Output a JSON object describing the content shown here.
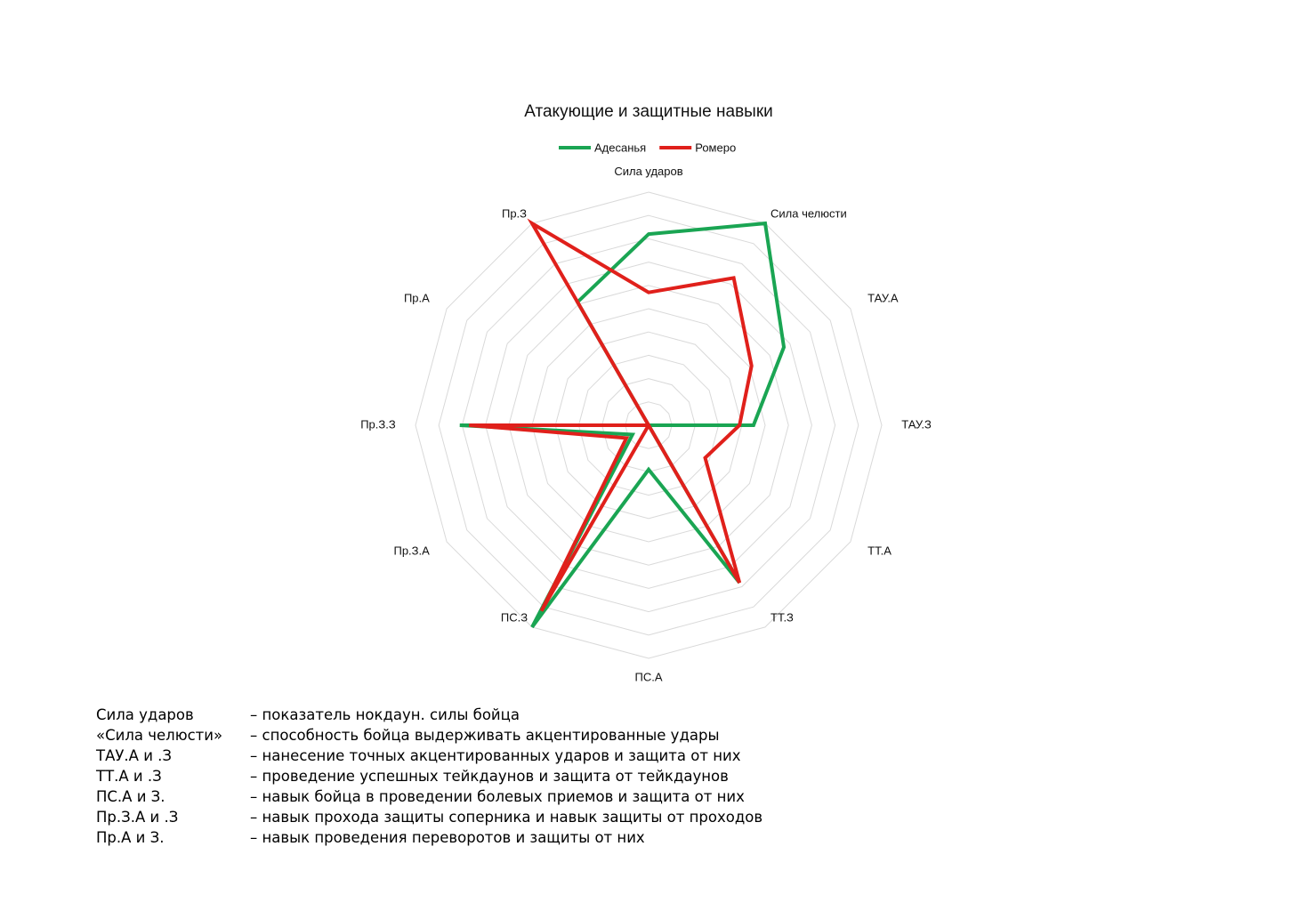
{
  "chart_data": {
    "type": "radar",
    "title": "Атакующие и защитные навыки",
    "categories": [
      "Сила ударов",
      "Сила челюсти",
      "ТАУ.А",
      "ТАУ.З",
      "ТТ.А",
      "ТТ.З",
      "ПС.А",
      "ПС.З",
      "Пр.З.А",
      "Пр.З.З",
      "Пр.А",
      "Пр.З"
    ],
    "series": [
      {
        "name": "Адесанья",
        "color": "#1aa553",
        "values": [
          8.2,
          10,
          6.7,
          4.5,
          0,
          7.8,
          1.9,
          10,
          0.8,
          8.1,
          0,
          6.1
        ]
      },
      {
        "name": "Ромеро",
        "color": "#e0201b",
        "values": [
          5.7,
          7.3,
          5.1,
          3.9,
          2.8,
          7.8,
          0,
          9.2,
          1.1,
          7.7,
          0,
          10
        ]
      }
    ],
    "rlim": [
      0,
      10
    ],
    "rticks": [
      1,
      2,
      3,
      4,
      5,
      6,
      7,
      8,
      9,
      10
    ],
    "grid": true,
    "legend": "top"
  },
  "notes": [
    {
      "term": "Сила ударов",
      "description": "– показатель нокдаун. силы бойца"
    },
    {
      "term": "«Сила челюсти»",
      "description": "– способность бойца выдерживать акцентированные удары"
    },
    {
      "term": "ТАУ.А и .З",
      "description": "– нанесение точных акцентированных ударов и защита от них"
    },
    {
      "term": "ТТ.А и .З",
      "description": "– проведение успешных тейкдаунов и защита от тейкдаунов"
    },
    {
      "term": "ПС.А и З.",
      "description": "– навык бойца в проведении болевых приемов и защита от них"
    },
    {
      "term": "Пр.З.А и .З",
      "description": "– навык прохода защиты соперника и навык защиты от проходов"
    },
    {
      "term": "Пр.А и З.",
      "description": "– навык проведения переворотов и защиты от них"
    }
  ]
}
